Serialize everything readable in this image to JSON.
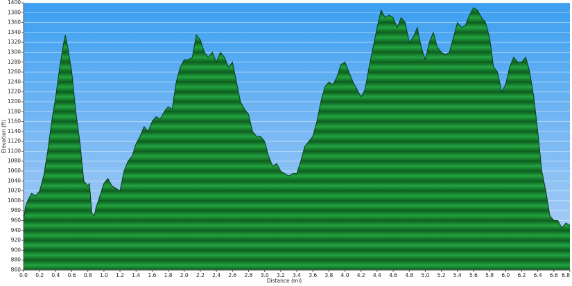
{
  "chart_data": {
    "type": "area",
    "x_label": "Distance (mi)",
    "y_label": "Elevation (ft)",
    "x": [
      0.0,
      0.02,
      0.05,
      0.1,
      0.15,
      0.2,
      0.25,
      0.3,
      0.35,
      0.4,
      0.45,
      0.5,
      0.52,
      0.55,
      0.6,
      0.65,
      0.7,
      0.75,
      0.8,
      0.82,
      0.85,
      0.88,
      0.9,
      0.95,
      1.0,
      1.05,
      1.1,
      1.15,
      1.2,
      1.25,
      1.3,
      1.35,
      1.4,
      1.45,
      1.5,
      1.55,
      1.6,
      1.65,
      1.7,
      1.75,
      1.8,
      1.85,
      1.9,
      1.95,
      2.0,
      2.05,
      2.1,
      2.15,
      2.2,
      2.25,
      2.3,
      2.35,
      2.4,
      2.45,
      2.5,
      2.55,
      2.6,
      2.65,
      2.7,
      2.75,
      2.8,
      2.85,
      2.9,
      2.95,
      3.0,
      3.05,
      3.1,
      3.15,
      3.2,
      3.25,
      3.3,
      3.35,
      3.4,
      3.45,
      3.5,
      3.55,
      3.6,
      3.65,
      3.7,
      3.75,
      3.8,
      3.85,
      3.9,
      3.95,
      4.0,
      4.05,
      4.1,
      4.15,
      4.2,
      4.25,
      4.3,
      4.35,
      4.4,
      4.45,
      4.5,
      4.55,
      4.6,
      4.65,
      4.7,
      4.75,
      4.8,
      4.85,
      4.9,
      4.95,
      5.0,
      5.05,
      5.1,
      5.15,
      5.2,
      5.25,
      5.3,
      5.35,
      5.4,
      5.45,
      5.5,
      5.55,
      5.6,
      5.65,
      5.7,
      5.75,
      5.8,
      5.85,
      5.9,
      5.95,
      6.0,
      6.05,
      6.1,
      6.15,
      6.2,
      6.25,
      6.3,
      6.35,
      6.4,
      6.45,
      6.5,
      6.55,
      6.6,
      6.65,
      6.7,
      6.75,
      6.8
    ],
    "series": [
      {
        "name": "Elevation",
        "color": "#22a340",
        "values": [
          960,
          985,
          1000,
          1015,
          1010,
          1020,
          1050,
          1100,
          1160,
          1210,
          1270,
          1320,
          1335,
          1310,
          1260,
          1180,
          1120,
          1040,
          1030,
          1035,
          975,
          970,
          985,
          1010,
          1035,
          1045,
          1030,
          1025,
          1020,
          1060,
          1080,
          1090,
          1115,
          1130,
          1150,
          1140,
          1160,
          1170,
          1165,
          1180,
          1190,
          1185,
          1240,
          1270,
          1285,
          1285,
          1290,
          1335,
          1325,
          1300,
          1290,
          1300,
          1280,
          1300,
          1290,
          1270,
          1280,
          1240,
          1200,
          1185,
          1175,
          1140,
          1130,
          1130,
          1120,
          1090,
          1070,
          1075,
          1060,
          1055,
          1050,
          1055,
          1055,
          1080,
          1110,
          1120,
          1130,
          1160,
          1200,
          1230,
          1240,
          1235,
          1250,
          1275,
          1280,
          1260,
          1240,
          1225,
          1210,
          1225,
          1270,
          1310,
          1350,
          1385,
          1370,
          1375,
          1370,
          1350,
          1370,
          1360,
          1320,
          1330,
          1350,
          1310,
          1285,
          1320,
          1340,
          1310,
          1300,
          1295,
          1300,
          1330,
          1360,
          1350,
          1355,
          1375,
          1390,
          1385,
          1370,
          1360,
          1330,
          1270,
          1260,
          1220,
          1235,
          1270,
          1290,
          1280,
          1280,
          1290,
          1260,
          1210,
          1140,
          1060,
          1020,
          970,
          960,
          960,
          945,
          955,
          950
        ]
      }
    ],
    "xlim": [
      0,
      6.8
    ],
    "ylim": [
      860,
      1400
    ],
    "xticks": [
      {
        "value": 0,
        "label": "0.0"
      },
      0.2,
      0.4,
      0.6,
      0.8,
      {
        "value": 1,
        "label": "1.0"
      },
      1.2,
      1.4,
      1.6,
      1.8,
      {
        "value": 2,
        "label": "2.0"
      },
      2.2,
      2.4,
      2.6,
      2.8,
      {
        "value": 3,
        "label": "3.0"
      },
      3.2,
      3.4,
      3.6,
      3.8,
      {
        "value": 4,
        "label": "4.0"
      },
      4.2,
      4.4,
      4.6,
      4.8,
      {
        "value": 5,
        "label": "5.0"
      },
      5.2,
      5.4,
      5.6,
      5.8,
      {
        "value": 6,
        "label": "6.0"
      },
      6.2,
      6.4,
      6.6,
      6.8
    ],
    "yticks": [
      860,
      880,
      900,
      920,
      940,
      960,
      980,
      1000,
      1020,
      1040,
      1060,
      1080,
      1100,
      1120,
      1140,
      1160,
      1180,
      1200,
      1220,
      1240,
      1260,
      1280,
      1300,
      1320,
      1340,
      1360,
      1380,
      1400
    ],
    "grid": true
  }
}
